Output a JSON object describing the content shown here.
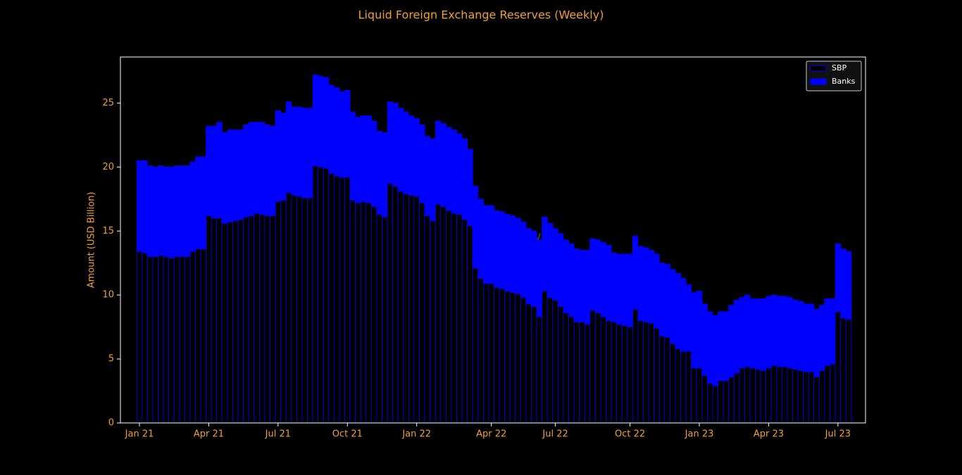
{
  "chart_data": {
    "type": "stacked_bar",
    "title": "Liquid Foreign Exchange Reserves (Weekly)",
    "y_label": "Amount (USD Billion)",
    "watermark": "Mettis Global News",
    "categories": [
      "Jan 21",
      null,
      null,
      null,
      null,
      null,
      null,
      null,
      null,
      null,
      null,
      null,
      null,
      "Apr 21",
      null,
      null,
      null,
      null,
      null,
      null,
      null,
      null,
      null,
      null,
      null,
      null,
      "Jul 21",
      null,
      null,
      null,
      null,
      null,
      null,
      null,
      null,
      null,
      null,
      null,
      null,
      "Oct 21",
      null,
      null,
      null,
      null,
      null,
      null,
      null,
      null,
      null,
      null,
      null,
      null,
      "Jan 22",
      null,
      null,
      null,
      null,
      null,
      null,
      null,
      null,
      null,
      null,
      null,
      null,
      null,
      "Apr 22",
      null,
      null,
      null,
      null,
      null,
      null,
      null,
      null,
      null,
      null,
      null,
      "Jul 22",
      null,
      null,
      null,
      null,
      null,
      null,
      null,
      null,
      null,
      null,
      null,
      null,
      null,
      "Oct 22",
      null,
      null,
      null,
      null,
      null,
      null,
      null,
      null,
      null,
      null,
      null,
      null,
      "Jan 23",
      null,
      null,
      null,
      null,
      null,
      null,
      null,
      null,
      null,
      null,
      null,
      null,
      "Apr 23",
      null,
      null,
      null,
      null,
      null,
      null,
      null,
      null,
      null,
      null,
      null,
      null,
      "Jul 23",
      null,
      null
    ],
    "series": [
      {
        "name": "SBP",
        "color": "#000000",
        "edgecolor": "#0000ff",
        "values": [
          13.4,
          13.3,
          13.0,
          13.0,
          13.1,
          13.0,
          12.9,
          13.0,
          13.0,
          13.0,
          13.4,
          13.6,
          13.6,
          16.2,
          16.0,
          16.0,
          15.6,
          15.7,
          15.8,
          15.9,
          16.1,
          16.2,
          16.4,
          16.3,
          16.2,
          16.2,
          17.3,
          17.4,
          18.0,
          17.8,
          17.7,
          17.6,
          17.6,
          20.1,
          20.0,
          19.9,
          19.5,
          19.3,
          19.2,
          19.2,
          17.4,
          17.2,
          17.3,
          17.2,
          16.9,
          16.3,
          16.1,
          18.7,
          18.5,
          18.1,
          17.9,
          17.8,
          17.7,
          17.2,
          16.2,
          15.8,
          17.1,
          16.9,
          16.6,
          16.4,
          16.3,
          15.9,
          15.4,
          12.1,
          11.3,
          10.9,
          10.9,
          10.6,
          10.5,
          10.3,
          10.2,
          10.1,
          9.8,
          9.3,
          9.1,
          8.3,
          10.3,
          9.8,
          9.6,
          9.1,
          8.6,
          8.3,
          7.9,
          7.9,
          7.7,
          8.8,
          8.6,
          8.3,
          8.0,
          7.9,
          7.7,
          7.6,
          7.5,
          8.9,
          8.0,
          7.9,
          7.8,
          7.4,
          6.8,
          6.7,
          6.2,
          5.8,
          5.6,
          5.6,
          4.3,
          4.3,
          3.7,
          3.1,
          2.9,
          3.3,
          3.3,
          3.6,
          3.9,
          4.3,
          4.4,
          4.3,
          4.2,
          4.1,
          4.3,
          4.5,
          4.4,
          4.4,
          4.3,
          4.2,
          4.1,
          4.0,
          4.0,
          3.6,
          4.1,
          4.5,
          4.6,
          8.7,
          8.2,
          8.1
        ]
      },
      {
        "name": "Banks",
        "color": "#0000ff",
        "edgecolor": "#0000ff",
        "values": [
          7.1,
          7.2,
          7.1,
          7.0,
          7.0,
          7.0,
          7.1,
          7.1,
          7.1,
          7.1,
          7.0,
          7.2,
          7.2,
          7.0,
          7.2,
          7.5,
          7.1,
          7.2,
          7.1,
          7.0,
          7.2,
          7.3,
          7.1,
          7.2,
          7.1,
          7.0,
          7.1,
          6.8,
          7.1,
          6.9,
          7.0,
          7.0,
          7.0,
          7.1,
          7.1,
          7.1,
          6.9,
          6.9,
          6.7,
          6.8,
          6.9,
          6.7,
          6.7,
          6.8,
          6.7,
          6.5,
          6.6,
          6.4,
          6.5,
          6.5,
          6.4,
          6.2,
          6.1,
          6.1,
          6.2,
          6.4,
          6.5,
          6.5,
          6.5,
          6.5,
          6.3,
          6.3,
          6.0,
          6.4,
          6.2,
          6.1,
          6.1,
          6.0,
          6.0,
          6.0,
          6.0,
          5.9,
          5.9,
          5.9,
          5.9,
          6.0,
          5.8,
          5.8,
          5.6,
          5.7,
          5.7,
          5.7,
          5.7,
          5.6,
          5.8,
          5.6,
          5.7,
          5.8,
          5.9,
          5.4,
          5.5,
          5.6,
          5.7,
          5.7,
          5.8,
          5.8,
          5.7,
          5.8,
          5.7,
          5.7,
          5.8,
          5.9,
          5.7,
          5.2,
          5.9,
          6.0,
          5.6,
          5.6,
          5.5,
          5.4,
          5.4,
          5.6,
          5.7,
          5.5,
          5.6,
          5.4,
          5.5,
          5.6,
          5.6,
          5.5,
          5.5,
          5.5,
          5.5,
          5.4,
          5.4,
          5.3,
          5.3,
          5.3,
          5.1,
          5.2,
          5.1,
          5.3,
          5.4,
          5.3
        ]
      }
    ],
    "ylim": [
      0,
      28.6
    ],
    "yticks": [
      0,
      5,
      10,
      15,
      20,
      25
    ],
    "legend": "upper right",
    "grid": false
  }
}
